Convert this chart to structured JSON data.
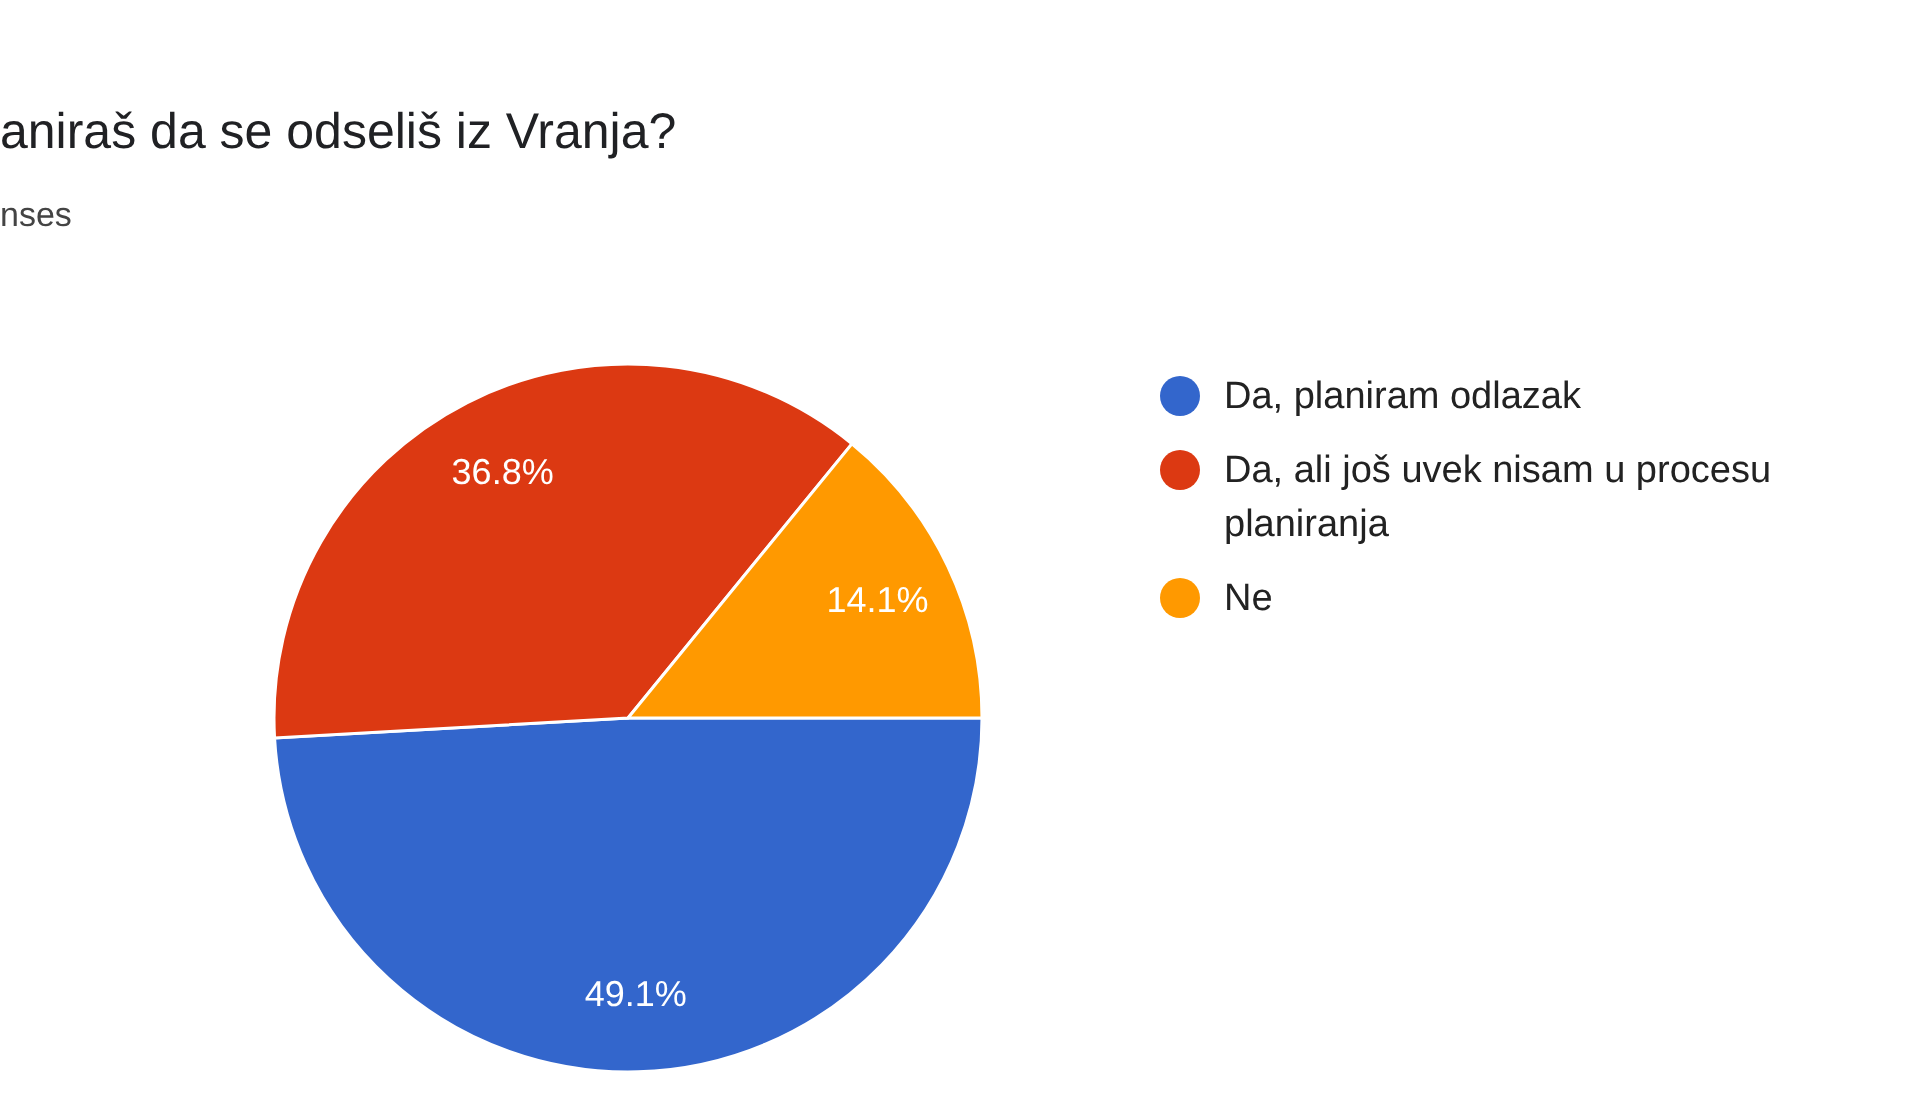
{
  "chart_data": {
    "type": "pie",
    "title": "aniraš da se odseliš iz Vranja?",
    "subtitle": "nses",
    "categories": [
      "Da, planiram odlazak",
      "Da, ali još uvek nisam u procesu planiranja",
      "Ne"
    ],
    "values": [
      49.1,
      36.8,
      14.1
    ],
    "colors": [
      "#3366cc",
      "#dc3912",
      "#ff9900"
    ],
    "value_labels": [
      "49.1%",
      "36.8%",
      "14.1%"
    ],
    "legend": "right"
  }
}
